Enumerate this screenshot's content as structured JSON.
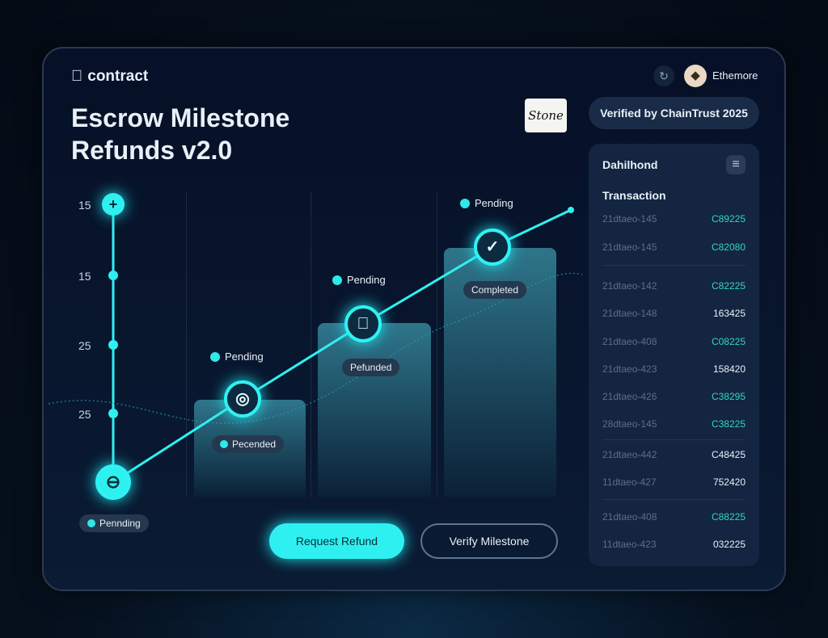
{
  "header": {
    "brand": "contract",
    "title_line1": "Escrow Milestone",
    "title_line2": "Refunds v2.0",
    "user": "Ethemore",
    "verified": "Verified by ChainTrust 2025",
    "signature": "Stone"
  },
  "axis": {
    "labels": [
      "15",
      "15",
      "25",
      "25"
    ]
  },
  "milestones": [
    {
      "pending": "Pending",
      "status": "Pecended",
      "icon": "target-icon"
    },
    {
      "pending": "Pending",
      "status": "Pefunded",
      "icon": "apple-icon"
    },
    {
      "pending": "Pending",
      "status": "Completed",
      "icon": "shield-icon"
    }
  ],
  "start_badge": "Pennding",
  "actions": {
    "request": "Request Refund",
    "verify": "Verify Milestone"
  },
  "sidebar": {
    "title": "Dahilhond",
    "subtitle": "Transaction",
    "rows": [
      {
        "k": "21dtaeo-145",
        "v": "C89225",
        "teal": true
      },
      {
        "k": "21dtaeo-145",
        "v": "C82080",
        "teal": true
      },
      {
        "k": "21dtaeo-142",
        "v": "C82225",
        "teal": true
      },
      {
        "k": "21dtaeo-148",
        "v": "163425",
        "teal": false
      },
      {
        "k": "21dtaeo-408",
        "v": "C08225",
        "teal": true
      },
      {
        "k": "21dtaeo-423",
        "v": "158420",
        "teal": false
      },
      {
        "k": "21dtaeo-426",
        "v": "C38295",
        "teal": true
      },
      {
        "k": "28dtaeo-145",
        "v": "C38225",
        "teal": true
      },
      {
        "k": "21dtaeo-442",
        "v": "C48425",
        "teal": false
      },
      {
        "k": "11dtaeo-427",
        "v": "752420",
        "teal": false
      },
      {
        "k": "21dtaeo-408",
        "v": "C88225",
        "teal": true
      },
      {
        "k": "11dtaeo-423",
        "v": "032225",
        "teal": false
      }
    ]
  },
  "colors": {
    "accent": "#2ff0f0",
    "teal": "#35d6c0",
    "panel": "#061027"
  }
}
